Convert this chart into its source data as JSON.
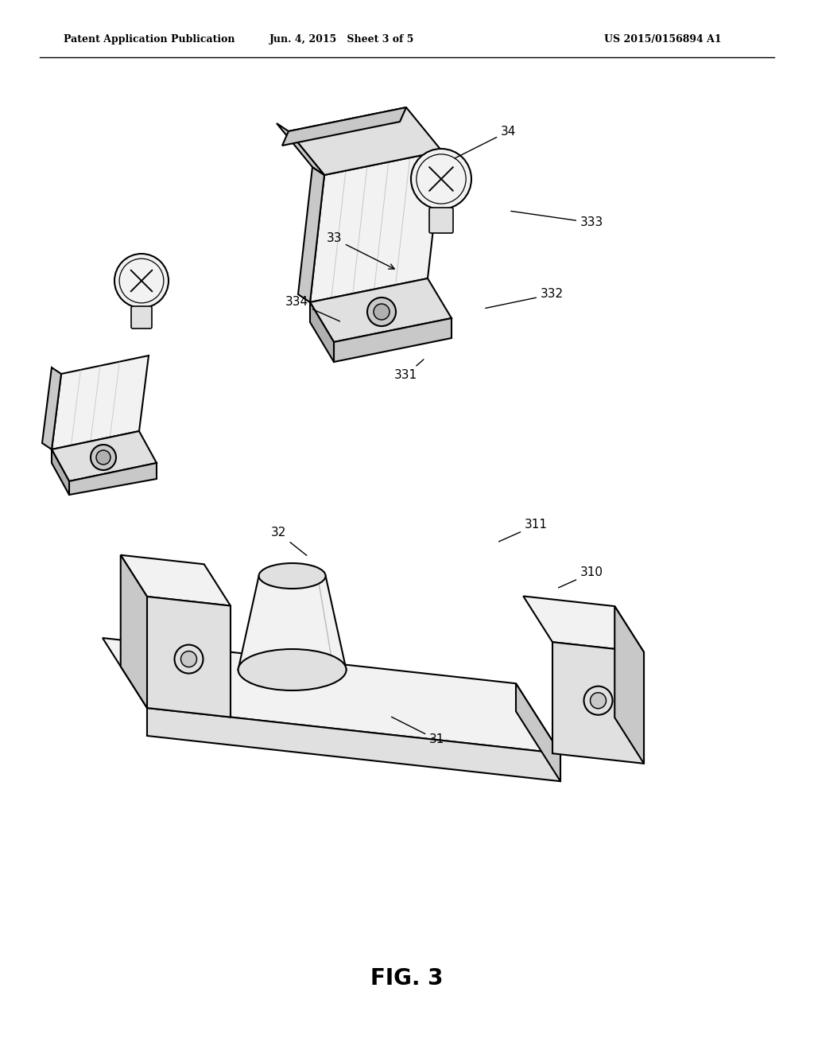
{
  "background_color": "#ffffff",
  "header_left": "Patent Application Publication",
  "header_middle": "Jun. 4, 2015   Sheet 3 of 5",
  "header_right": "US 2015/0156894 A1",
  "figure_label": "FIG. 3",
  "label_fontsize": 11,
  "header_fontsize": 9,
  "figure_label_fontsize": 20
}
